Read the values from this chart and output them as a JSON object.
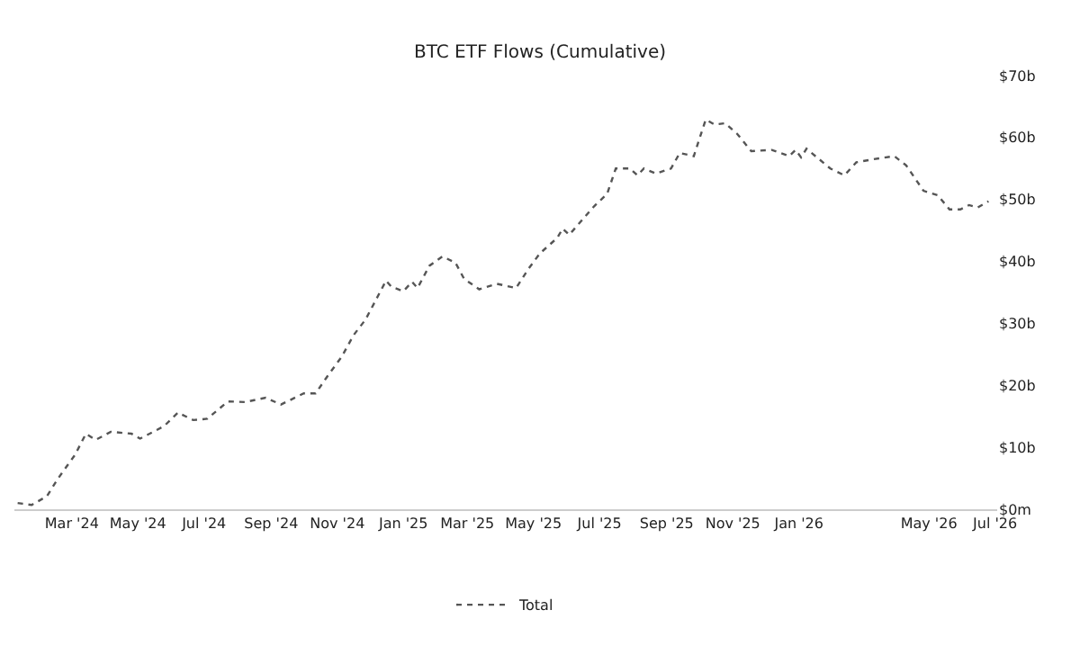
{
  "chart_data": {
    "type": "line",
    "title": "BTC ETF Flows (Cumulative)",
    "x": [
      "2024-01-11",
      "2024-01-24",
      "2024-02-07",
      "2024-02-17",
      "2024-03-04",
      "2024-03-14",
      "2024-03-23",
      "2024-04-06",
      "2024-04-25",
      "2024-05-03",
      "2024-05-25",
      "2024-06-07",
      "2024-06-21",
      "2024-07-04",
      "2024-07-23",
      "2024-08-08",
      "2024-08-27",
      "2024-09-10",
      "2024-10-01",
      "2024-10-12",
      "2024-10-23",
      "2024-11-05",
      "2024-11-16",
      "2024-11-27",
      "2024-12-16",
      "2024-12-21",
      "2025-01-01",
      "2025-01-09",
      "2025-01-14",
      "2025-01-25",
      "2025-02-06",
      "2025-02-18",
      "2025-02-26",
      "2025-03-12",
      "2025-03-28",
      "2025-04-15",
      "2025-04-26",
      "2025-05-07",
      "2025-05-23",
      "2025-05-28",
      "2025-06-03",
      "2025-06-26",
      "2025-07-08",
      "2025-07-16",
      "2025-07-29",
      "2025-08-05",
      "2025-08-11",
      "2025-08-22",
      "2025-09-05",
      "2025-09-13",
      "2025-09-26",
      "2025-10-07",
      "2025-10-15",
      "2025-10-25",
      "2025-11-05",
      "2025-11-18",
      "2025-12-07",
      "2025-12-23",
      "2025-12-29",
      "2026-01-03",
      "2026-01-08",
      "2026-01-30",
      "2026-02-12",
      "2026-02-23",
      "2026-03-11",
      "2026-03-30",
      "2026-04-10",
      "2026-04-26",
      "2026-05-09",
      "2026-05-20",
      "2026-05-30",
      "2026-06-07",
      "2026-06-15",
      "2026-06-25"
    ],
    "series": [
      {
        "name": "Total",
        "color": "#555555",
        "values": [
          1.0,
          0.7,
          2.1,
          4.9,
          8.8,
          12.2,
          11.2,
          12.5,
          12.2,
          11.4,
          13.4,
          15.6,
          14.4,
          14.6,
          17.4,
          17.3,
          18.0,
          16.9,
          18.7,
          18.7,
          21.5,
          24.6,
          28.1,
          30.6,
          36.9,
          35.9,
          35.2,
          36.7,
          35.7,
          39.3,
          40.8,
          39.8,
          37.2,
          35.5,
          36.4,
          35.7,
          38.7,
          41.3,
          43.8,
          45.3,
          44.3,
          48.9,
          50.9,
          55.0,
          55.0,
          53.9,
          55.0,
          54.2,
          55.0,
          57.5,
          57.0,
          62.9,
          62.1,
          62.3,
          60.6,
          57.8,
          58.0,
          57.0,
          58.0,
          56.8,
          58.2,
          55.0,
          53.9,
          56.0,
          56.5,
          57.0,
          55.5,
          51.4,
          50.7,
          48.4,
          48.4,
          49.1,
          48.7,
          49.7
        ]
      }
    ],
    "xlim": [
      "2024-01-08",
      "2026-07-03"
    ],
    "xticks": [
      {
        "value": "2024-03-01",
        "label": "Mar '24"
      },
      {
        "value": "2024-05-01",
        "label": "May '24"
      },
      {
        "value": "2024-07-01",
        "label": "Jul '24"
      },
      {
        "value": "2024-09-01",
        "label": "Sep '24"
      },
      {
        "value": "2024-11-01",
        "label": "Nov '24"
      },
      {
        "value": "2025-01-01",
        "label": "Jan '25"
      },
      {
        "value": "2025-03-01",
        "label": "Mar '25"
      },
      {
        "value": "2025-05-01",
        "label": "May '25"
      },
      {
        "value": "2025-07-01",
        "label": "Jul '25"
      },
      {
        "value": "2025-09-01",
        "label": "Sep '25"
      },
      {
        "value": "2025-11-01",
        "label": "Nov '25"
      },
      {
        "value": "2026-01-01",
        "label": "Jan '26"
      },
      {
        "value": "2026-05-01",
        "label": "May '26"
      },
      {
        "value": "2026-07-01",
        "label": "Jul '26"
      }
    ],
    "ylim": [
      0,
      70
    ],
    "yticks": [
      {
        "value": 0,
        "label": "$0m"
      },
      {
        "value": 10,
        "label": "$10b"
      },
      {
        "value": 20,
        "label": "$20b"
      },
      {
        "value": 30,
        "label": "$30b"
      },
      {
        "value": 40,
        "label": "$40b"
      },
      {
        "value": 50,
        "label": "$50b"
      },
      {
        "value": 60,
        "label": "$60b"
      },
      {
        "value": 70,
        "label": "$70b"
      }
    ],
    "grid": false,
    "legend": "bottom",
    "line_style": "dotted",
    "marker": "none"
  }
}
